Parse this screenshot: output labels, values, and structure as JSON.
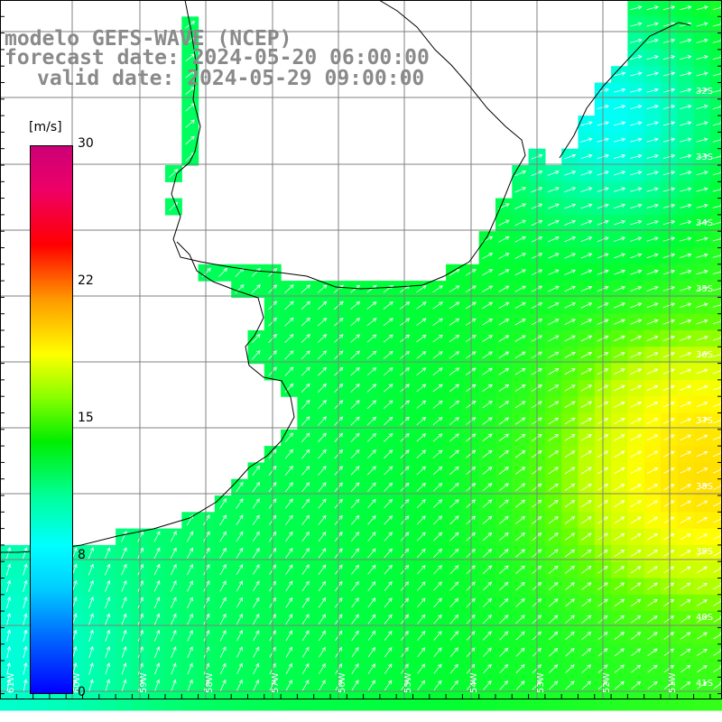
{
  "title": {
    "line1": "modelo GEFS-WAVE (NCEP)",
    "line2": "forecast date: 2024-05-20 06:00:00",
    "line3": "valid date: 2024-05-29 09:00:00"
  },
  "colorbar": {
    "unit": "[m/s]",
    "ticks": [
      "30",
      "22",
      "15",
      "8",
      "0"
    ]
  },
  "lat_labels": [
    "32S",
    "33S",
    "34S",
    "35S",
    "36S",
    "37S",
    "38S",
    "39S",
    "40S",
    "41S"
  ],
  "lon_labels": [
    "61W",
    "60W",
    "59W",
    "58W",
    "57W",
    "56W",
    "55W",
    "54W",
    "53W",
    "52W",
    "51W"
  ],
  "colors": {
    "land": "#ffffff",
    "grid": "#808080",
    "coast": "#000000",
    "arrows": "#ffffff"
  },
  "field_stops": [
    {
      "value": 0,
      "color": "#0000ff"
    },
    {
      "value": 4,
      "color": "#0080ff"
    },
    {
      "value": 7,
      "color": "#00d8ff"
    },
    {
      "value": 8,
      "color": "#00ffff"
    },
    {
      "value": 10,
      "color": "#00ff99"
    },
    {
      "value": 12,
      "color": "#00ff33"
    },
    {
      "value": 14,
      "color": "#66ff00"
    },
    {
      "value": 15,
      "color": "#bbff00"
    },
    {
      "value": 17,
      "color": "#ffff00"
    },
    {
      "value": 22,
      "color": "#ff8800"
    },
    {
      "value": 26,
      "color": "#ff0000"
    },
    {
      "value": 30,
      "color": "#cc0077"
    }
  ]
}
